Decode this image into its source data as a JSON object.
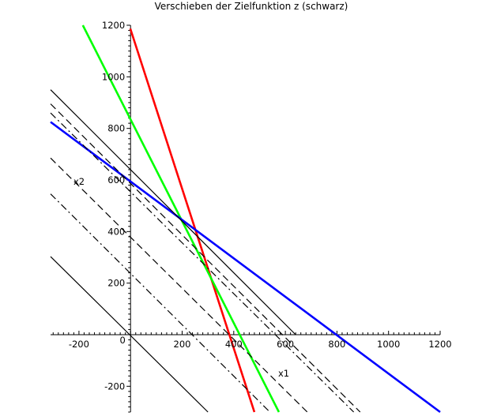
{
  "chart_data": {
    "type": "line",
    "title": "Verschieben der Zielfunktion z (schwarz)",
    "xlabel": "x1",
    "ylabel": "x2",
    "xlim": [
      -310,
      1200
    ],
    "ylim": [
      -300,
      1200
    ],
    "x_ticks": [
      -200,
      0,
      200,
      400,
      600,
      800,
      1000,
      1200
    ],
    "x_tick_labels": [
      "-200",
      "0",
      "200",
      "400",
      "600",
      "800",
      "1000",
      "1200"
    ],
    "y_ticks": [
      -200,
      200,
      400,
      600,
      800,
      1000,
      1200
    ],
    "y_tick_labels": [
      "-200",
      "200",
      "400",
      "600",
      "800",
      "1000",
      "1200"
    ],
    "grid": false,
    "constraint_lines": [
      {
        "color": "#ff0000",
        "points": [
          [
            -1,
            1187
          ],
          [
            480,
            -300
          ]
        ]
      },
      {
        "color": "#00ff00",
        "points": [
          [
            -185,
            1200
          ],
          [
            575,
            -300
          ]
        ]
      },
      {
        "color": "#0000ff",
        "points": [
          [
            -310,
            825
          ],
          [
            1200,
            -300
          ]
        ]
      }
    ],
    "objective_lines": [
      {
        "color": "#000000",
        "dash": "solid",
        "points": [
          [
            -310,
            303
          ],
          [
            300,
            -300
          ]
        ]
      },
      {
        "color": "#000000",
        "dash": "dashdot",
        "points": [
          [
            -310,
            546
          ],
          [
            540,
            -300
          ]
        ]
      },
      {
        "color": "#000000",
        "dash": "dashed",
        "points": [
          [
            -310,
            685
          ],
          [
            685,
            -300
          ]
        ]
      },
      {
        "color": "#000000",
        "dash": "solid",
        "points": [
          [
            -310,
            950
          ],
          [
            640,
            0
          ]
        ]
      },
      {
        "color": "#000000",
        "dash": "dashed",
        "points": [
          [
            -310,
            895
          ],
          [
            890,
            -300
          ]
        ]
      },
      {
        "color": "#000000",
        "dash": "dashdot",
        "points": [
          [
            -310,
            860
          ],
          [
            865,
            -300
          ]
        ]
      }
    ]
  }
}
